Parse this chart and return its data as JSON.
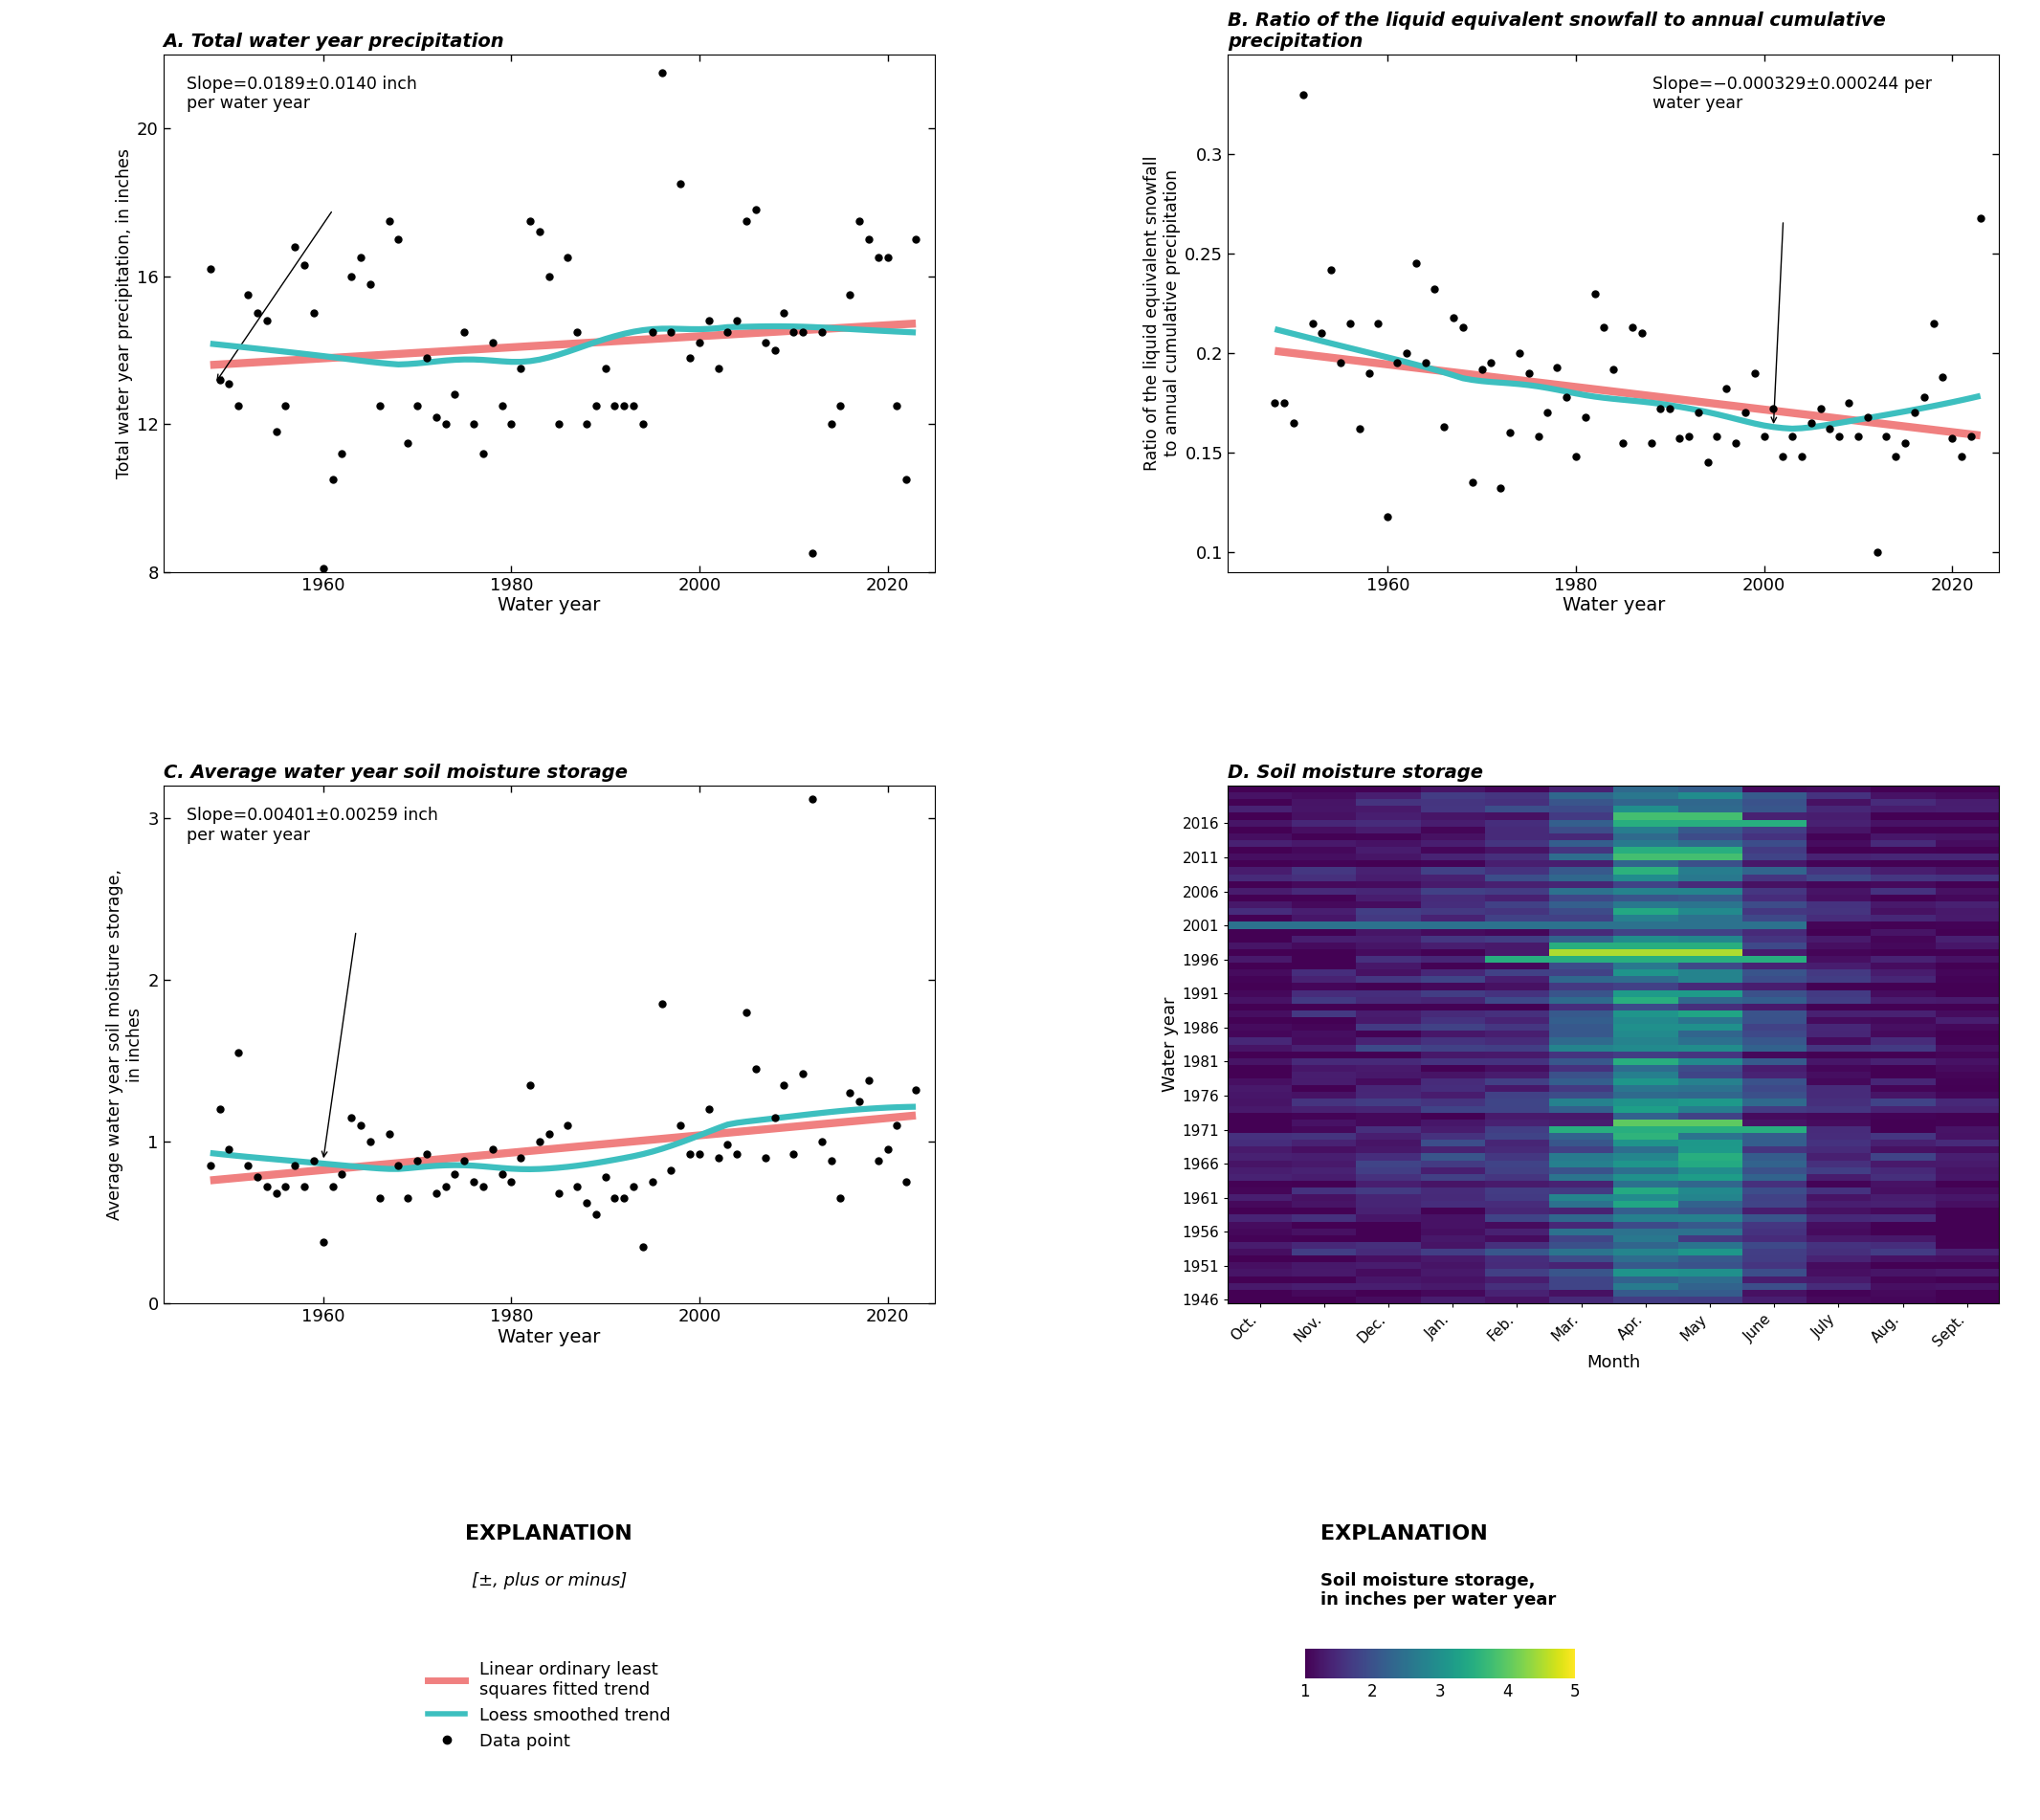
{
  "panel_A_title": "A. Total water year precipitation",
  "panel_B_title": "B. Ratio of the liquid equivalent snowfall to annual cumulative\nprecipitation",
  "panel_C_title": "C. Average water year soil moisture storage",
  "panel_D_title": "D. Soil moisture storage",
  "panel_A_xlabel": "Water year",
  "panel_A_ylabel": "Total water year precipitation, in inches",
  "panel_B_xlabel": "Water year",
  "panel_B_ylabel": "Ratio of the liquid equivalent snowfall\nto annual cumulative precipitation",
  "panel_C_xlabel": "Water year",
  "panel_C_ylabel": "Average water year soil moisture storage,\nin inches",
  "panel_D_xlabel": "Month",
  "panel_D_ylabel": "Water year",
  "panel_A_slope_text": "Slope=0.0189±0.0140 inch\nper water year",
  "panel_B_slope_text": "Slope=−0.000329±0.000244 per\nwater year",
  "panel_C_slope_text": "Slope=0.00401±0.00259 inch\nper water year",
  "explanation_text": "EXPLANATION",
  "explanation_pm": "[±, plus or minus]",
  "legend_linear": "Linear ordinary least\nsquares fitted trend",
  "legend_loess": "Loess smoothed trend",
  "legend_data": "Data point",
  "colorbar_title": "Soil moisture storage,\nin inches per water year",
  "linear_color": "#F08080",
  "loess_color": "#3DBFBF",
  "panel_A_ylim": [
    8,
    22
  ],
  "panel_A_yticks": [
    8,
    12,
    16,
    20
  ],
  "panel_B_ylim": [
    0.09,
    0.35
  ],
  "panel_B_yticks": [
    0.1,
    0.15,
    0.2,
    0.25,
    0.3
  ],
  "panel_C_ylim": [
    0.0,
    3.2
  ],
  "panel_C_yticks": [
    0,
    1,
    2,
    3
  ],
  "xlim": [
    1943,
    2025
  ],
  "xticks": [
    1960,
    1980,
    2000,
    2020
  ],
  "panel_A_data_x": [
    1948,
    1949,
    1950,
    1951,
    1952,
    1953,
    1954,
    1955,
    1956,
    1957,
    1958,
    1959,
    1960,
    1961,
    1962,
    1963,
    1964,
    1965,
    1966,
    1967,
    1968,
    1969,
    1970,
    1971,
    1972,
    1973,
    1974,
    1975,
    1976,
    1977,
    1978,
    1979,
    1980,
    1981,
    1982,
    1983,
    1984,
    1985,
    1986,
    1987,
    1988,
    1989,
    1990,
    1991,
    1992,
    1993,
    1994,
    1995,
    1996,
    1997,
    1998,
    1999,
    2000,
    2001,
    2002,
    2003,
    2004,
    2005,
    2006,
    2007,
    2008,
    2009,
    2010,
    2011,
    2012,
    2013,
    2014,
    2015,
    2016,
    2017,
    2018,
    2019,
    2020,
    2021,
    2022,
    2023
  ],
  "panel_A_data_y": [
    16.2,
    13.2,
    13.1,
    12.5,
    15.5,
    15.0,
    14.8,
    11.8,
    12.5,
    16.8,
    16.3,
    15.0,
    8.1,
    10.5,
    11.2,
    16.0,
    16.5,
    15.8,
    12.5,
    17.5,
    17.0,
    11.5,
    12.5,
    13.8,
    12.2,
    12.0,
    12.8,
    14.5,
    12.0,
    11.2,
    14.2,
    12.5,
    12.0,
    13.5,
    17.5,
    17.2,
    16.0,
    12.0,
    16.5,
    14.5,
    12.0,
    12.5,
    13.5,
    12.5,
    12.5,
    12.5,
    12.0,
    14.5,
    21.5,
    14.5,
    18.5,
    13.8,
    14.2,
    14.8,
    13.5,
    14.5,
    14.8,
    17.5,
    17.8,
    14.2,
    14.0,
    15.0,
    14.5,
    14.5,
    8.5,
    14.5,
    12.0,
    12.5,
    15.5,
    17.5,
    17.0,
    16.5,
    16.5,
    12.5,
    10.5,
    17.0
  ],
  "panel_B_data_x": [
    1948,
    1949,
    1950,
    1951,
    1952,
    1953,
    1954,
    1955,
    1956,
    1957,
    1958,
    1959,
    1960,
    1961,
    1962,
    1963,
    1964,
    1965,
    1966,
    1967,
    1968,
    1969,
    1970,
    1971,
    1972,
    1973,
    1974,
    1975,
    1976,
    1977,
    1978,
    1979,
    1980,
    1981,
    1982,
    1983,
    1984,
    1985,
    1986,
    1987,
    1988,
    1989,
    1990,
    1991,
    1992,
    1993,
    1994,
    1995,
    1996,
    1997,
    1998,
    1999,
    2000,
    2001,
    2002,
    2003,
    2004,
    2005,
    2006,
    2007,
    2008,
    2009,
    2010,
    2011,
    2012,
    2013,
    2014,
    2015,
    2016,
    2017,
    2018,
    2019,
    2020,
    2021,
    2022,
    2023
  ],
  "panel_B_data_y": [
    0.175,
    0.175,
    0.165,
    0.33,
    0.215,
    0.21,
    0.242,
    0.195,
    0.215,
    0.162,
    0.19,
    0.215,
    0.118,
    0.195,
    0.2,
    0.245,
    0.195,
    0.232,
    0.163,
    0.218,
    0.213,
    0.135,
    0.192,
    0.195,
    0.132,
    0.16,
    0.2,
    0.19,
    0.158,
    0.17,
    0.193,
    0.178,
    0.148,
    0.168,
    0.23,
    0.213,
    0.192,
    0.155,
    0.213,
    0.21,
    0.155,
    0.172,
    0.172,
    0.157,
    0.158,
    0.17,
    0.145,
    0.158,
    0.182,
    0.155,
    0.17,
    0.19,
    0.158,
    0.172,
    0.148,
    0.158,
    0.148,
    0.165,
    0.172,
    0.162,
    0.158,
    0.175,
    0.158,
    0.168,
    0.1,
    0.158,
    0.148,
    0.155,
    0.17,
    0.178,
    0.215,
    0.188,
    0.157,
    0.148,
    0.158,
    0.268
  ],
  "panel_C_data_x": [
    1948,
    1949,
    1950,
    1951,
    1952,
    1953,
    1954,
    1955,
    1956,
    1957,
    1958,
    1959,
    1960,
    1961,
    1962,
    1963,
    1964,
    1965,
    1966,
    1967,
    1968,
    1969,
    1970,
    1971,
    1972,
    1973,
    1974,
    1975,
    1976,
    1977,
    1978,
    1979,
    1980,
    1981,
    1982,
    1983,
    1984,
    1985,
    1986,
    1987,
    1988,
    1989,
    1990,
    1991,
    1992,
    1993,
    1994,
    1995,
    1996,
    1997,
    1998,
    1999,
    2000,
    2001,
    2002,
    2003,
    2004,
    2005,
    2006,
    2007,
    2008,
    2009,
    2010,
    2011,
    2012,
    2013,
    2014,
    2015,
    2016,
    2017,
    2018,
    2019,
    2020,
    2021,
    2022,
    2023
  ],
  "panel_C_data_y": [
    0.85,
    1.2,
    0.95,
    1.55,
    0.85,
    0.78,
    0.72,
    0.68,
    0.72,
    0.85,
    0.72,
    0.88,
    0.38,
    0.72,
    0.8,
    1.15,
    1.1,
    1.0,
    0.65,
    1.05,
    0.85,
    0.65,
    0.88,
    0.92,
    0.68,
    0.72,
    0.8,
    0.88,
    0.75,
    0.72,
    0.95,
    0.8,
    0.75,
    0.9,
    1.35,
    1.0,
    1.05,
    0.68,
    1.1,
    0.72,
    0.62,
    0.55,
    0.78,
    0.65,
    0.65,
    0.72,
    0.35,
    0.75,
    1.85,
    0.82,
    1.1,
    0.92,
    0.92,
    1.2,
    0.9,
    0.98,
    0.92,
    1.8,
    1.45,
    0.9,
    1.15,
    1.35,
    0.92,
    1.42,
    3.12,
    1.0,
    0.88,
    0.65,
    1.3,
    1.25,
    1.38,
    0.88,
    0.95,
    1.1,
    0.75,
    1.32
  ],
  "heatmap_months": [
    "Oct.",
    "Nov.",
    "Dec.",
    "Jan.",
    "Feb.",
    "Mar.",
    "Apr.",
    "May",
    "June",
    "July",
    "Aug.",
    "Sept."
  ],
  "heatmap_years": [
    1946,
    1951,
    1956,
    1961,
    1966,
    1971,
    1976,
    1981,
    1986,
    1991,
    1996,
    2001,
    2006,
    2011,
    2016
  ],
  "colorbar_ticks": [
    1,
    2,
    3,
    4,
    5
  ],
  "colorbar_ticklabels": [
    "1",
    "2",
    "3",
    "4",
    "5"
  ],
  "heatmap_vmin": 1.0,
  "heatmap_vmax": 5.0
}
